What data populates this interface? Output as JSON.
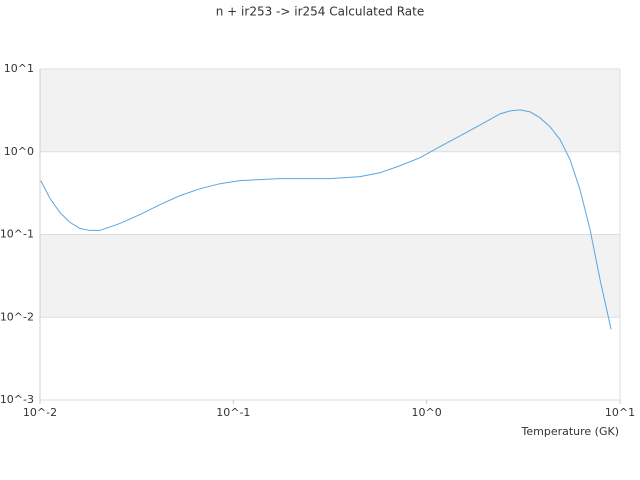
{
  "chart_data": {
    "type": "line",
    "title": "n + ir253 -> ir254 Calculated Rate",
    "xlabel": "Temperature (GK)",
    "x": [
      0.0101,
      0.01127,
      0.01268,
      0.01429,
      0.0161,
      0.01815,
      0.0204,
      0.0259,
      0.0329,
      0.0418,
      0.053,
      0.0673,
      0.0853,
      0.108,
      0.137,
      0.174,
      0.316,
      0.452,
      0.574,
      0.728,
      0.924,
      1.17,
      1.49,
      1.89,
      2.4,
      2.7,
      3.04,
      3.43,
      3.86,
      4.35,
      4.9,
      5.52,
      6.21,
      7.0,
      7.88,
      8.99
    ],
    "values": [
      0.448,
      0.272,
      0.184,
      0.14,
      0.118,
      0.112,
      0.112,
      0.136,
      0.174,
      0.23,
      0.295,
      0.358,
      0.411,
      0.448,
      0.46,
      0.473,
      0.473,
      0.5,
      0.558,
      0.678,
      0.848,
      1.15,
      1.56,
      2.11,
      2.87,
      3.12,
      3.21,
      3.03,
      2.57,
      2.0,
      1.4,
      0.8,
      0.348,
      0.115,
      0.0287,
      0.00716
    ],
    "color": "#5aa6e0",
    "xscale": "log",
    "yscale": "log",
    "xlim": [
      0.01,
      10
    ],
    "ylim": [
      0.001,
      10
    ],
    "xticks": [
      {
        "value": 0.01,
        "label": "10^-2"
      },
      {
        "value": 0.1,
        "label": "10^-1"
      },
      {
        "value": 1,
        "label": "10^0"
      },
      {
        "value": 10,
        "label": "10^1"
      }
    ],
    "yticks": [
      {
        "value": 0.001,
        "label": "10^-3"
      },
      {
        "value": 0.01,
        "label": "10^-2"
      },
      {
        "value": 0.1,
        "label": "10^-1"
      },
      {
        "value": 1,
        "label": "10^0"
      },
      {
        "value": 10,
        "label": "10^1"
      }
    ],
    "grid": true,
    "grid_band_color": "#f2f2f2"
  }
}
